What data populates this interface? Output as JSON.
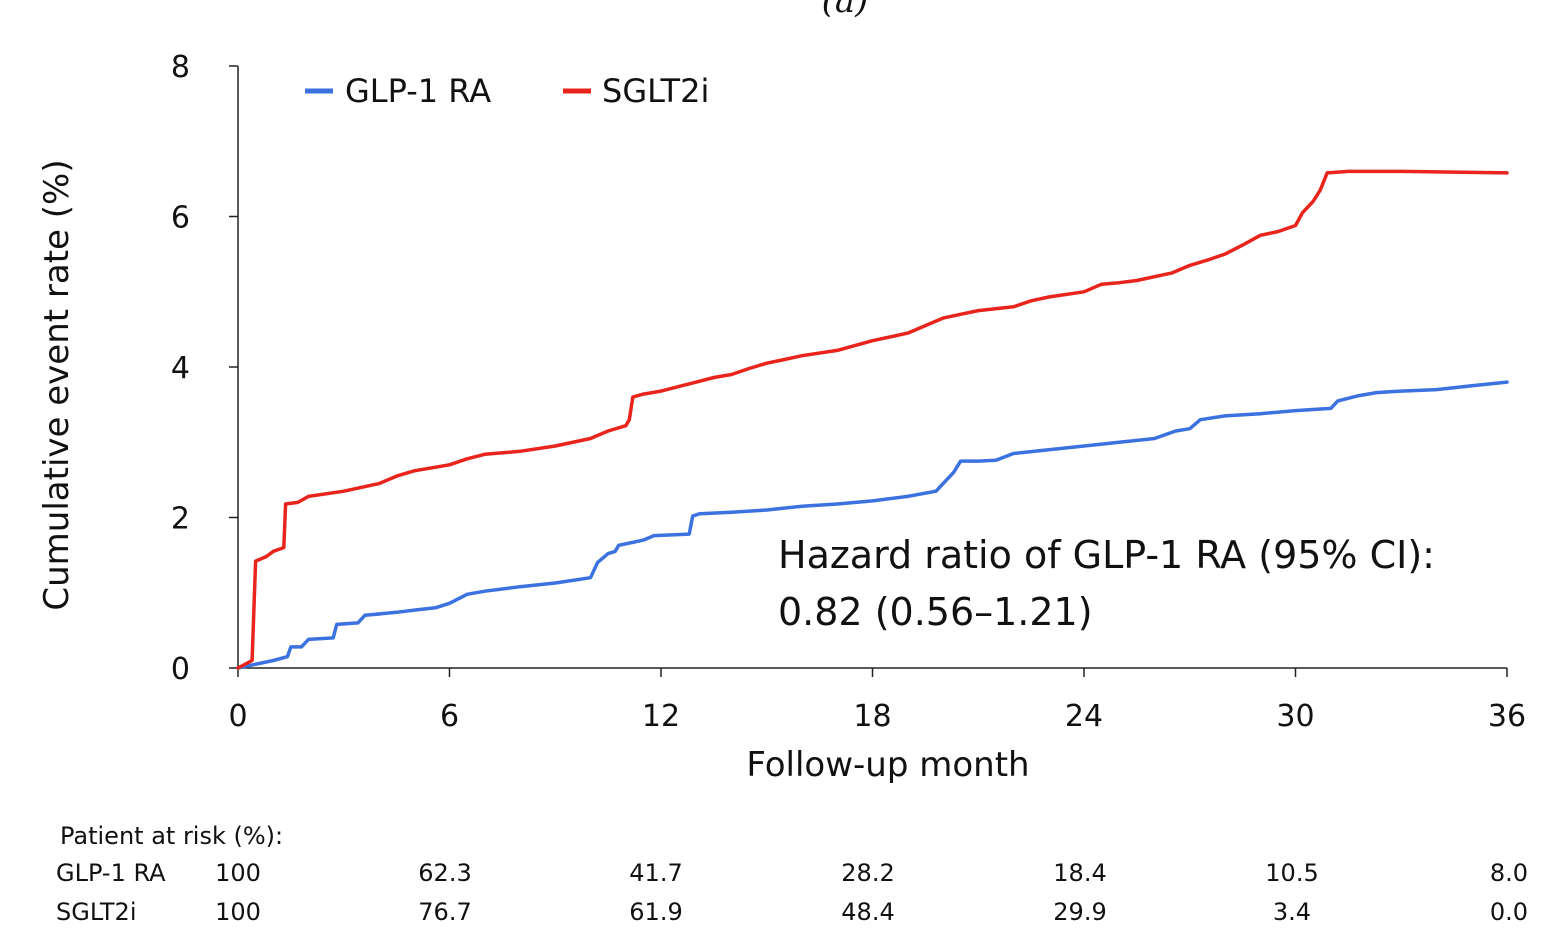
{
  "panel_label": "(a)",
  "chart_data": {
    "type": "line",
    "xlabel": "Follow-up month",
    "ylabel": "Cumulative event rate (%)",
    "xlim": [
      0,
      36
    ],
    "ylim": [
      0,
      8
    ],
    "xticks": [
      "0",
      "6",
      "12",
      "18",
      "24",
      "30",
      "36"
    ],
    "yticks": [
      "0",
      "2",
      "4",
      "6",
      "8"
    ],
    "grid": false,
    "legend_position": "top-left",
    "series": [
      {
        "name": "GLP-1 RA",
        "color": "#3b72e0",
        "points": [
          [
            0,
            0
          ],
          [
            1,
            0.1
          ],
          [
            1.4,
            0.15
          ],
          [
            1.5,
            0.28
          ],
          [
            1.8,
            0.28
          ],
          [
            2,
            0.38
          ],
          [
            2.7,
            0.4
          ],
          [
            2.8,
            0.58
          ],
          [
            3.4,
            0.6
          ],
          [
            3.6,
            0.7
          ],
          [
            4.5,
            0.74
          ],
          [
            5,
            0.77
          ],
          [
            5.6,
            0.8
          ],
          [
            6,
            0.86
          ],
          [
            6.5,
            0.98
          ],
          [
            7,
            1.02
          ],
          [
            8,
            1.08
          ],
          [
            9,
            1.13
          ],
          [
            10,
            1.2
          ],
          [
            10.2,
            1.4
          ],
          [
            10.5,
            1.52
          ],
          [
            10.7,
            1.55
          ],
          [
            10.8,
            1.63
          ],
          [
            11.5,
            1.7
          ],
          [
            11.8,
            1.76
          ],
          [
            12.8,
            1.78
          ],
          [
            12.9,
            2.02
          ],
          [
            13.1,
            2.05
          ],
          [
            14,
            2.07
          ],
          [
            15,
            2.1
          ],
          [
            16,
            2.15
          ],
          [
            17,
            2.18
          ],
          [
            18,
            2.22
          ],
          [
            19,
            2.28
          ],
          [
            19.8,
            2.35
          ],
          [
            20.1,
            2.5
          ],
          [
            20.3,
            2.6
          ],
          [
            20.5,
            2.75
          ],
          [
            21,
            2.75
          ],
          [
            21.5,
            2.76
          ],
          [
            22,
            2.85
          ],
          [
            23,
            2.9
          ],
          [
            24,
            2.95
          ],
          [
            25,
            3
          ],
          [
            26,
            3.05
          ],
          [
            26.6,
            3.15
          ],
          [
            27,
            3.18
          ],
          [
            27.3,
            3.3
          ],
          [
            28,
            3.35
          ],
          [
            29,
            3.38
          ],
          [
            30,
            3.42
          ],
          [
            31,
            3.45
          ],
          [
            31.2,
            3.55
          ],
          [
            31.8,
            3.62
          ],
          [
            32.3,
            3.66
          ],
          [
            33,
            3.68
          ],
          [
            34,
            3.7
          ],
          [
            35,
            3.75
          ],
          [
            36,
            3.8
          ]
        ]
      },
      {
        "name": "SGLT2i",
        "color": "#e8241c",
        "points": [
          [
            0,
            0
          ],
          [
            0.4,
            0.1
          ],
          [
            0.5,
            1.42
          ],
          [
            0.8,
            1.48
          ],
          [
            1,
            1.55
          ],
          [
            1.3,
            1.6
          ],
          [
            1.35,
            2.18
          ],
          [
            1.7,
            2.2
          ],
          [
            2,
            2.28
          ],
          [
            3,
            2.35
          ],
          [
            4,
            2.45
          ],
          [
            4.5,
            2.55
          ],
          [
            5,
            2.62
          ],
          [
            6,
            2.7
          ],
          [
            6.5,
            2.78
          ],
          [
            7,
            2.84
          ],
          [
            8,
            2.88
          ],
          [
            9,
            2.95
          ],
          [
            10,
            3.05
          ],
          [
            10.5,
            3.15
          ],
          [
            11,
            3.22
          ],
          [
            11.1,
            3.3
          ],
          [
            11.2,
            3.6
          ],
          [
            11.5,
            3.64
          ],
          [
            12,
            3.68
          ],
          [
            12.5,
            3.74
          ],
          [
            13,
            3.8
          ],
          [
            13.5,
            3.86
          ],
          [
            14,
            3.9
          ],
          [
            14.5,
            3.98
          ],
          [
            15,
            4.05
          ],
          [
            15.5,
            4.1
          ],
          [
            16,
            4.15
          ],
          [
            17,
            4.22
          ],
          [
            18,
            4.35
          ],
          [
            19,
            4.45
          ],
          [
            19.5,
            4.55
          ],
          [
            20,
            4.65
          ],
          [
            20.5,
            4.7
          ],
          [
            21,
            4.75
          ],
          [
            22,
            4.8
          ],
          [
            22.5,
            4.88
          ],
          [
            23,
            4.93
          ],
          [
            24,
            5
          ],
          [
            24.5,
            5.1
          ],
          [
            25,
            5.12
          ],
          [
            25.5,
            5.15
          ],
          [
            26,
            5.2
          ],
          [
            26.5,
            5.25
          ],
          [
            27,
            5.35
          ],
          [
            27.5,
            5.42
          ],
          [
            28,
            5.5
          ],
          [
            28.5,
            5.62
          ],
          [
            29,
            5.75
          ],
          [
            29.5,
            5.8
          ],
          [
            30,
            5.88
          ],
          [
            30.2,
            6.05
          ],
          [
            30.5,
            6.2
          ],
          [
            30.7,
            6.35
          ],
          [
            30.9,
            6.58
          ],
          [
            31.5,
            6.6
          ],
          [
            33,
            6.6
          ],
          [
            36,
            6.58
          ]
        ]
      }
    ],
    "annotations": [
      "Hazard ratio of GLP-1 RA (95% CI):",
      "0.82 (0.56–1.21)"
    ]
  },
  "risk_table": {
    "title": "Patient at risk (%):",
    "rows": [
      {
        "label": "GLP-1 RA",
        "values": [
          "100",
          "62.3",
          "41.7",
          "28.2",
          "18.4",
          "10.5",
          "8.0"
        ]
      },
      {
        "label": "SGLT2i",
        "values": [
          "100",
          "76.7",
          "61.9",
          "48.4",
          "29.9",
          "3.4",
          "0.0"
        ]
      }
    ]
  }
}
